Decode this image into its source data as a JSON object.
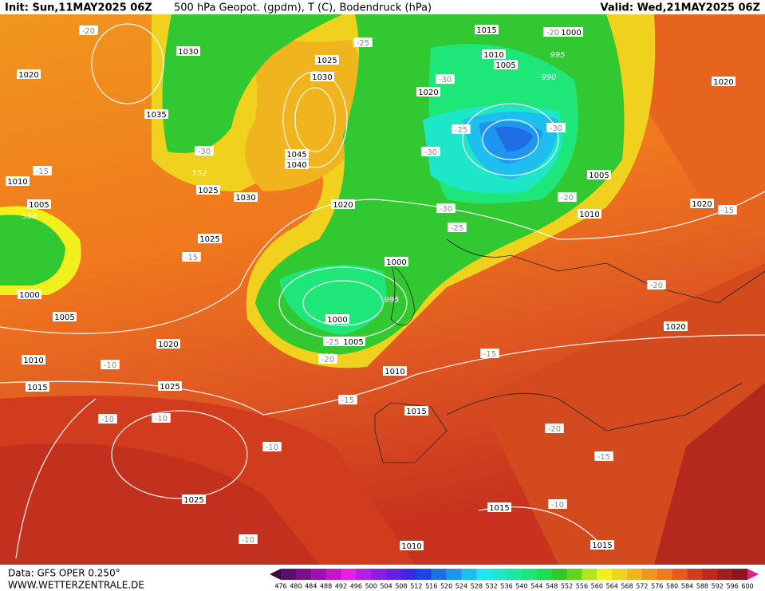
{
  "header": {
    "init": "Init: Sun,11MAY2025 06Z",
    "title": "500 hPa Geopot. (gpdm), T (C), Bodendruck (hPa)",
    "valid": "Valid: Wed,21MAY2025 06Z"
  },
  "footer": {
    "data": "Data: GFS OPER 0.250°",
    "site": "WWW.WETTERZENTRALE.DE"
  },
  "colorbar": {
    "labels": [
      476,
      480,
      484,
      488,
      492,
      496,
      500,
      504,
      508,
      512,
      516,
      520,
      524,
      528,
      532,
      536,
      540,
      544,
      548,
      552,
      556,
      560,
      564,
      568,
      572,
      576,
      580,
      584,
      588,
      592,
      596,
      600
    ],
    "colors": [
      "#3c0a3c",
      "#5a0f6e",
      "#7a0f8c",
      "#a00fb4",
      "#c814c8",
      "#e61ee6",
      "#b41ee6",
      "#8c1ee6",
      "#641ee6",
      "#3c28e6",
      "#1e46e6",
      "#1e6ee6",
      "#1e96f0",
      "#1ebef0",
      "#1ee6f0",
      "#1ee6c8",
      "#1ee6a0",
      "#1ee678",
      "#1edc50",
      "#32c832",
      "#64d21e",
      "#b4e61e",
      "#f0f01e",
      "#f0d21e",
      "#f0b41e",
      "#f0961e",
      "#f0781e",
      "#e65a1e",
      "#d23c1e",
      "#be281e",
      "#a01e1e",
      "#8c141e",
      "#e61e96"
    ]
  },
  "map_labels": [
    "1015",
    "-20",
    "1000",
    "1010",
    "1005",
    "995",
    "990",
    "-30",
    "1020",
    "-25",
    "1025",
    "1030",
    "1030",
    "-20",
    "1020",
    "1035",
    "-30",
    "552",
    "1025",
    "1045",
    "1040",
    "1030",
    "1020",
    "-25",
    "-30",
    "-30",
    "1005",
    "-20",
    "1010",
    "-30",
    "-25",
    "1020",
    "-15",
    "1020",
    "1010",
    "-15",
    "1005",
    "558",
    "1025",
    "-15",
    "1000",
    "995",
    "1000",
    "1005",
    "-25",
    "552",
    "-20",
    "1000",
    "1005",
    "1020",
    "1010",
    "-10",
    "1015",
    "1025",
    "-15",
    "-20",
    "1020",
    "1010",
    "-15",
    "1015",
    "-10",
    "-10",
    "-10",
    "-20",
    "-15",
    "1025",
    "1015",
    "-10",
    "-10",
    "1010",
    "1015"
  ]
}
